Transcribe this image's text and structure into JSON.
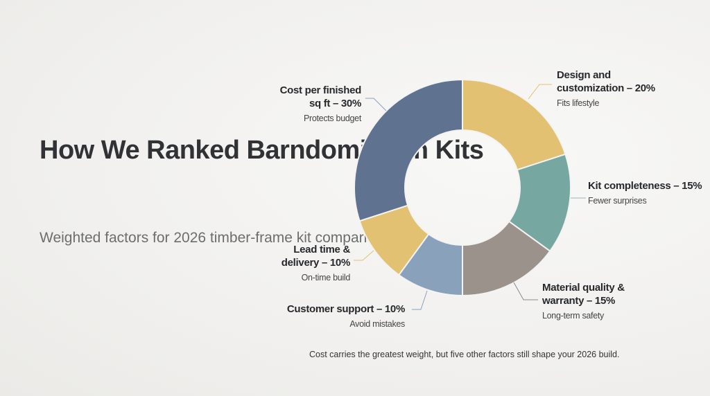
{
  "title": "How We Ranked Barndominium Kits",
  "subtitle": "Weighted factors for 2026 timber-frame kit comparison",
  "footnote": "Cost carries the greatest weight, but five other factors still shape your 2026 build.",
  "chart_data": {
    "type": "pie",
    "donut": true,
    "title": "How We Ranked Barndominium Kits",
    "slices": [
      {
        "label": "Design and customization – 20%",
        "note": "Fits lifestyle",
        "value": 20,
        "color": "#e2c172"
      },
      {
        "label": "Kit completeness – 15%",
        "note": "Fewer surprises",
        "value": 15,
        "color": "#76a7a0"
      },
      {
        "label": "Material quality & warranty – 15%",
        "note": "Long-term safety",
        "value": 15,
        "color": "#9b938b"
      },
      {
        "label": "Customer support – 10%",
        "note": "Avoid mistakes",
        "value": 10,
        "color": "#8aa1bc"
      },
      {
        "label": "Lead time & delivery – 10%",
        "note": "On-time build",
        "value": 10,
        "color": "#e2c172"
      },
      {
        "label": "Cost per finished sq ft – 30%",
        "note": "Protects budget",
        "value": 30,
        "color": "#5f7391"
      }
    ]
  }
}
